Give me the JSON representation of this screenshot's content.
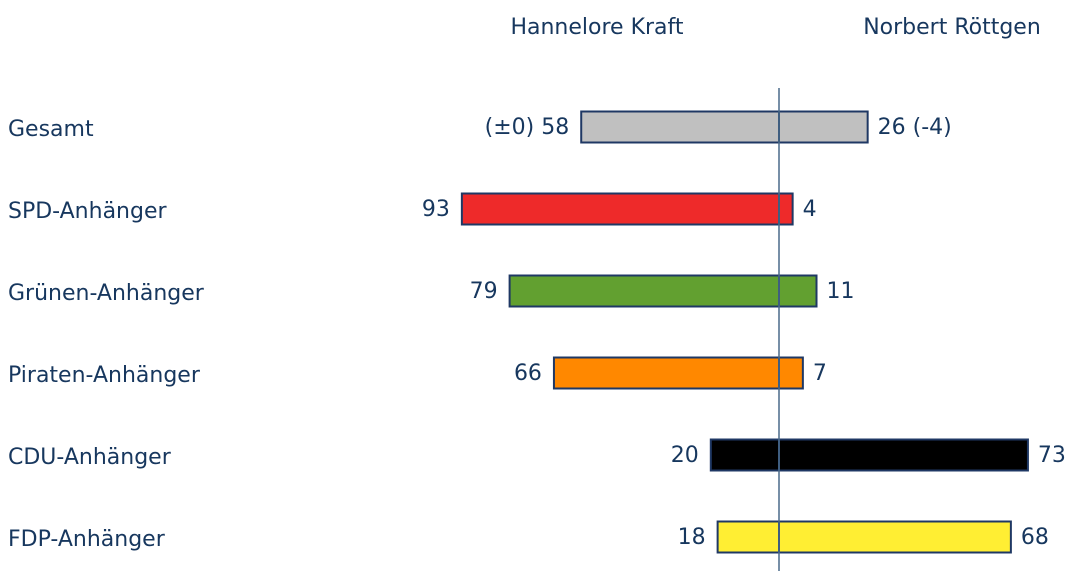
{
  "chart_data": {
    "type": "diverging_bar",
    "categories": [
      "Gesamt",
      "SPD-Anhänger",
      "Grünen-Anhänger",
      "Piraten-Anhänger",
      "CDU-Anhänger",
      "FDP-Anhänger"
    ],
    "colors": [
      "#c0c0c0",
      "#ee2a2a",
      "#62a030",
      "#ff8800",
      "#000000",
      "#ffee33"
    ],
    "series": [
      {
        "name": "Hannelore Kraft",
        "values": [
          58,
          93,
          79,
          66,
          20,
          18
        ],
        "value_labels": [
          "(±0) 58",
          "93",
          "79",
          "66",
          "20",
          "18"
        ]
      },
      {
        "name": "Norbert Röttgen",
        "values": [
          26,
          4,
          11,
          7,
          73,
          68
        ],
        "value_labels": [
          "26 (-4)",
          "4",
          "11",
          "7",
          "73",
          "68"
        ]
      }
    ]
  }
}
